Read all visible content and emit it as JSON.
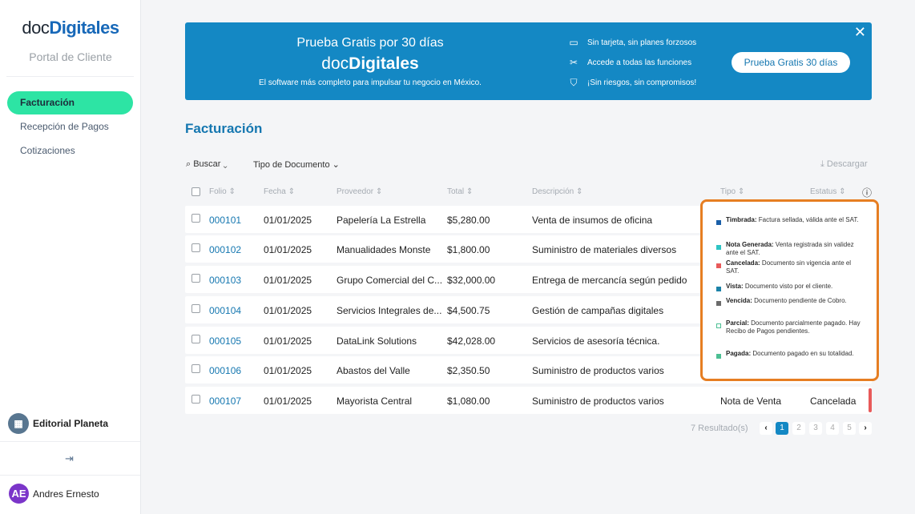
{
  "sidebar": {
    "logo_a": "doc",
    "logo_b": "Digitales",
    "portal": "Portal de Cliente",
    "items": [
      {
        "label": "Facturación"
      },
      {
        "label": "Recepción de Pagos"
      },
      {
        "label": "Cotizaciones"
      }
    ],
    "org": {
      "name": "Editorial Planeta",
      "icon": "building-icon"
    },
    "logout_icon": "logout-icon",
    "user": {
      "initials": "AE",
      "name": "Andres Ernesto"
    }
  },
  "banner": {
    "title": "Prueba Gratis por 30 días",
    "logo_a": "doc",
    "logo_b": "Digitales",
    "subtitle": "El software más completo para impulsar tu negocio en México.",
    "features": [
      {
        "icon": "card-icon",
        "text": "Sin tarjeta, sin planes forzosos"
      },
      {
        "icon": "tools-icon",
        "text": "Accede a todas las funciones"
      },
      {
        "icon": "shield-icon",
        "text": "¡Sin riesgos, sin compromisos!"
      }
    ],
    "button": "Prueba Gratis 30 días",
    "close": "✕"
  },
  "page": {
    "title": "Facturación",
    "search": "Buscar",
    "doc_type": "Tipo de Documento",
    "download": "Descargar"
  },
  "table": {
    "headers": [
      "Folio",
      "Fecha",
      "Proveedor",
      "Total",
      "Descripción",
      "Tipo",
      "Estatus"
    ],
    "rows": [
      {
        "folio": "000101",
        "fecha": "01/01/2025",
        "proveedor": "Papelería La Estrella",
        "total": "$5,280.00",
        "descripcion": "Venta de insumos de oficina"
      },
      {
        "folio": "000102",
        "fecha": "01/01/2025",
        "proveedor": "Manualidades Monste",
        "total": "$1,800.00",
        "descripcion": "Suministro de materiales diversos"
      },
      {
        "folio": "000103",
        "fecha": "01/01/2025",
        "proveedor": "Grupo Comercial del C...",
        "total": "$32,000.00",
        "descripcion": "Entrega de mercancía según pedido"
      },
      {
        "folio": "000104",
        "fecha": "01/01/2025",
        "proveedor": "Servicios Integrales de...",
        "total": "$4,500.75",
        "descripcion": "Gestión de campañas digitales"
      },
      {
        "folio": "000105",
        "fecha": "01/01/2025",
        "proveedor": "DataLink Solutions",
        "total": "$42,028.00",
        "descripcion": "Servicios de asesoría técnica."
      },
      {
        "folio": "000106",
        "fecha": "01/01/2025",
        "proveedor": "Abastos del Valle",
        "total": "$2,350.50",
        "descripcion": "Suministro de productos varios"
      },
      {
        "folio": "000107",
        "fecha": "01/01/2025",
        "proveedor": "Mayorista Central",
        "total": "$1,080.00",
        "descripcion": "Suministro de productos varios",
        "tipo": "Nota de Venta",
        "estatus": "Cancelada"
      }
    ]
  },
  "legend": [
    {
      "term": "Timbrada:",
      "desc": " Factura sellada, válida ante el SAT.",
      "color": "#1a5fa8"
    },
    {
      "term": "Nota Generada:",
      "desc": " Venta registrada sin validez ante el SAT.",
      "color": "#2ec4c4"
    },
    {
      "term": "Cancelada:",
      "desc": " Documento sin vigencia ante el SAT.",
      "color": "#e85a5a"
    },
    {
      "term": "Vista:",
      "desc": " Documento visto por el cliente.",
      "color": "#1b82a8"
    },
    {
      "term": "Vencida:",
      "desc": " Documento pendiente de Cobro.",
      "color": "#6b6b6b"
    },
    {
      "term": "Parcial:",
      "desc": " Documento parcialmente pagado. Hay Recibo de Pagos pendientes.",
      "color": "#ffffff"
    },
    {
      "term": "Pagada:",
      "desc": " Documento pagado en su totalidad.",
      "color": "#4cbf93"
    }
  ],
  "pagination": {
    "results": "7 Resultado(s)",
    "pages": [
      "1",
      "2",
      "3",
      "4",
      "5"
    ],
    "current": "1"
  }
}
